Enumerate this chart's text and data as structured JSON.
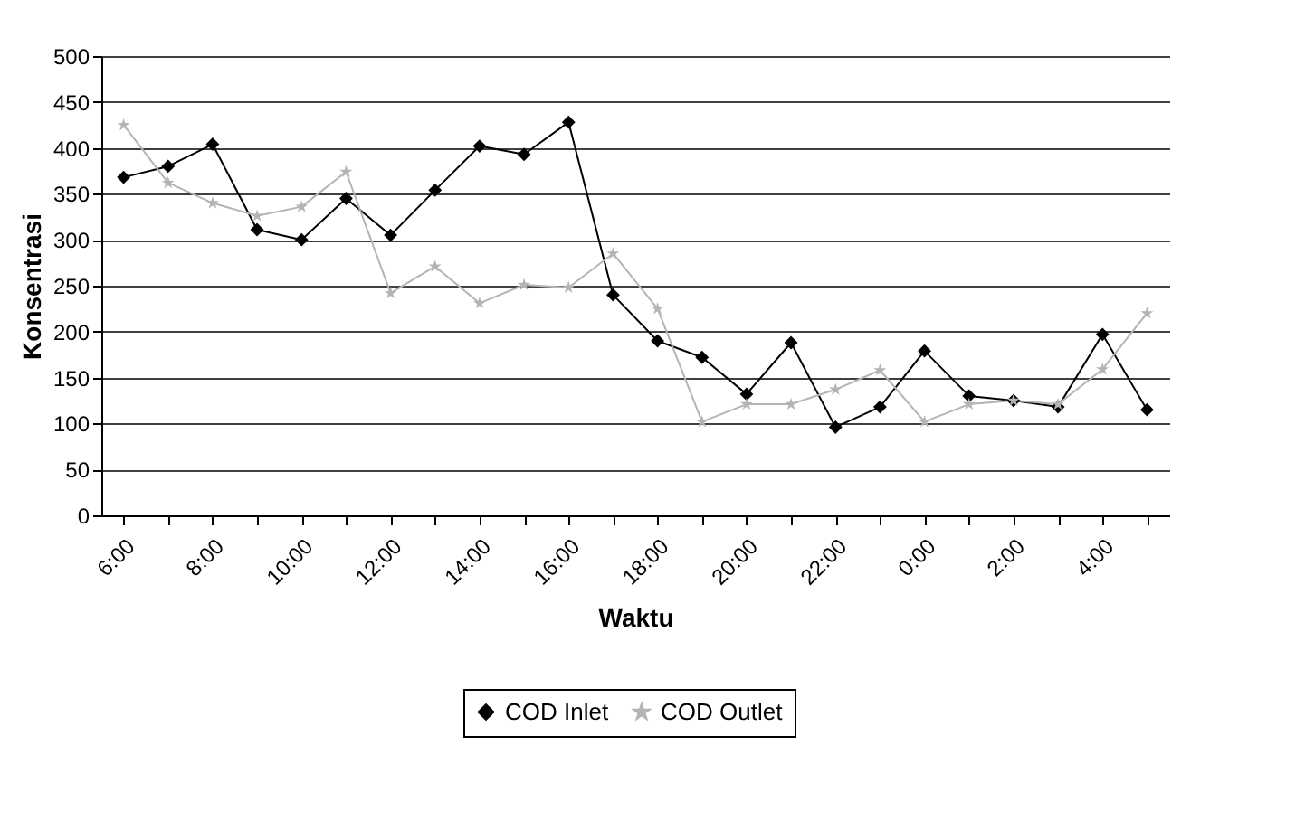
{
  "chart_data": {
    "type": "line",
    "xlabel": "Waktu",
    "ylabel": "Konsentrasi",
    "categories": [
      "6:00",
      null,
      "8:00",
      null,
      "10:00",
      null,
      "12:00",
      null,
      "14:00",
      null,
      "16:00",
      null,
      "18:00",
      null,
      "20:00",
      null,
      "22:00",
      null,
      "0:00",
      null,
      "2:00",
      null,
      "4:00",
      null
    ],
    "series": [
      {
        "name": "COD Inlet",
        "color": "#000000",
        "marker": "diamond",
        "values": [
          368,
          380,
          404,
          311,
          300,
          345,
          305,
          354,
          402,
          393,
          428,
          240,
          190,
          172,
          132,
          188,
          96,
          118,
          179,
          130,
          125,
          118,
          197,
          115
        ]
      },
      {
        "name": "COD Outlet",
        "color": "#b4b4b4",
        "marker": "star",
        "values": [
          425,
          362,
          340,
          326,
          336,
          374,
          242,
          271,
          231,
          251,
          248,
          285,
          225,
          102,
          121,
          121,
          137,
          158,
          102,
          121,
          125,
          121,
          159,
          220
        ]
      }
    ],
    "ylim": [
      0,
      500
    ],
    "yticks": [
      0,
      50,
      100,
      150,
      200,
      250,
      300,
      350,
      400,
      450,
      500
    ],
    "grid": "y",
    "legend": "bottom"
  }
}
